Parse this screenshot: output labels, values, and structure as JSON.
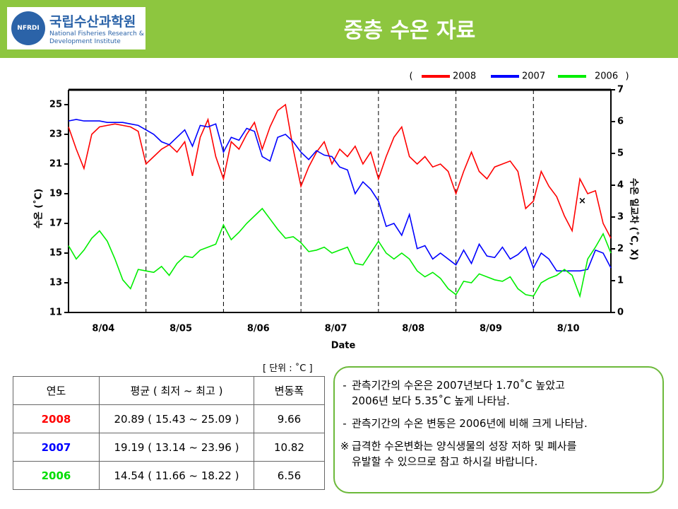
{
  "header": {
    "title": "중층 수온 자료",
    "logo": {
      "emblem": "NFRDI",
      "name": "국립수산과학원",
      "english": [
        "National Fisheries Research &",
        "Development Institute"
      ]
    }
  },
  "chart_data": {
    "type": "line",
    "x_label": "Date",
    "y_label": "수온 (˚C)",
    "y2_label": "수온 일교차 (˚C, X)",
    "legend": {
      "open": "(",
      "close": ")"
    },
    "categories": [
      "8/04",
      "8/05",
      "8/06",
      "8/07",
      "8/08",
      "8/09",
      "8/10"
    ],
    "xlim": [
      0,
      7
    ],
    "x": [
      0,
      0.1,
      0.2,
      0.3,
      0.4,
      0.5,
      0.6,
      0.7,
      0.8,
      0.9,
      1,
      1.1,
      1.2,
      1.3,
      1.4,
      1.5,
      1.6,
      1.7,
      1.8,
      1.9,
      2,
      2.1,
      2.2,
      2.3,
      2.4,
      2.5,
      2.6,
      2.7,
      2.8,
      2.9,
      3,
      3.1,
      3.2,
      3.3,
      3.4,
      3.5,
      3.6,
      3.7,
      3.8,
      3.9,
      4,
      4.1,
      4.2,
      4.3,
      4.4,
      4.5,
      4.6,
      4.7,
      4.8,
      4.9,
      5,
      5.1,
      5.2,
      5.3,
      5.4,
      5.5,
      5.6,
      5.7,
      5.8,
      5.9,
      6,
      6.1,
      6.2,
      6.3,
      6.4,
      6.5,
      6.6,
      6.7,
      6.8,
      6.9,
      7
    ],
    "ylim": [
      11,
      26
    ],
    "yticks": [
      11,
      13,
      15,
      17,
      19,
      21,
      23,
      25
    ],
    "y2lim": [
      0,
      7
    ],
    "y2ticks": [
      0,
      1,
      2,
      3,
      4,
      5,
      6,
      7
    ],
    "series": [
      {
        "name": "2008",
        "color": "#ff0000",
        "values": [
          23.5,
          22.0,
          20.7,
          23.0,
          23.5,
          23.6,
          23.7,
          23.6,
          23.5,
          23.2,
          21.0,
          21.5,
          22.0,
          22.3,
          21.8,
          22.5,
          20.2,
          22.8,
          24.0,
          21.5,
          20.0,
          22.5,
          22.0,
          23.0,
          23.8,
          22.0,
          23.5,
          24.6,
          25.0,
          22.0,
          19.5,
          20.8,
          21.8,
          22.5,
          21.0,
          22.0,
          21.5,
          22.2,
          21.0,
          21.8,
          20.0,
          21.5,
          22.8,
          23.5,
          21.5,
          21.0,
          21.5,
          20.8,
          21.0,
          20.5,
          19.0,
          20.5,
          21.8,
          20.5,
          20.0,
          20.8,
          21.0,
          21.2,
          20.5,
          18.0,
          18.5,
          20.5,
          19.5,
          18.8,
          17.5,
          16.5,
          20.0,
          19.0,
          19.2,
          17.0,
          16.0
        ]
      },
      {
        "name": "2007",
        "color": "#0000ff",
        "values": [
          23.9,
          24.0,
          23.9,
          23.9,
          23.9,
          23.8,
          23.8,
          23.8,
          23.7,
          23.6,
          23.3,
          23.0,
          22.5,
          22.3,
          22.8,
          23.3,
          22.2,
          23.6,
          23.5,
          23.7,
          21.8,
          22.8,
          22.6,
          23.4,
          23.2,
          21.5,
          21.2,
          22.8,
          23.0,
          22.5,
          21.8,
          21.3,
          21.9,
          21.6,
          21.5,
          20.8,
          20.6,
          19.0,
          19.8,
          19.3,
          18.5,
          16.8,
          17.0,
          16.2,
          17.6,
          15.3,
          15.5,
          14.6,
          15.0,
          14.6,
          14.2,
          15.2,
          14.3,
          15.6,
          14.8,
          14.7,
          15.4,
          14.6,
          14.9,
          15.4,
          14.0,
          15.0,
          14.6,
          13.8,
          13.8,
          13.8,
          13.8,
          13.9,
          15.2,
          15.0,
          14.0
        ]
      },
      {
        "name": "2006",
        "color": "#00ee00",
        "values": [
          15.5,
          14.6,
          15.2,
          16.0,
          16.5,
          15.8,
          14.6,
          13.2,
          12.6,
          13.9,
          13.8,
          13.7,
          14.1,
          13.5,
          14.3,
          14.8,
          14.7,
          15.2,
          15.4,
          15.6,
          16.9,
          15.9,
          16.4,
          17.0,
          17.5,
          18.0,
          17.3,
          16.6,
          16.0,
          16.1,
          15.7,
          15.1,
          15.2,
          15.4,
          15.0,
          15.2,
          15.4,
          14.3,
          14.2,
          15.0,
          15.8,
          15.0,
          14.6,
          15.0,
          14.6,
          13.8,
          13.4,
          13.7,
          13.3,
          12.6,
          12.2,
          13.1,
          13.0,
          13.6,
          13.4,
          13.2,
          13.1,
          13.4,
          12.6,
          12.2,
          12.1,
          13.0,
          13.3,
          13.5,
          13.9,
          13.5,
          12.1,
          14.6,
          15.4,
          16.3,
          15.0
        ]
      }
    ],
    "y2_points": {
      "x": [
        6.63
      ],
      "values": [
        3.5
      ],
      "marker": "×"
    }
  },
  "table": {
    "unit": "[ 단위 : ˚C ]",
    "header": [
      "연도",
      "평균 ( 최저 ~ 최고 )",
      "변동폭"
    ],
    "rows": [
      {
        "color": "#ff0000",
        "cells": [
          "2008",
          "20.89 ( 15.43 ~ 25.09 )",
          "9.66"
        ]
      },
      {
        "color": "#0000ff",
        "cells": [
          "2007",
          "19.19 ( 13.14 ~ 23.96 )",
          "10.82"
        ]
      },
      {
        "color": "#00dd00",
        "cells": [
          "2006",
          "14.54 ( 11.66 ~ 18.22 )",
          "6.56"
        ]
      }
    ]
  },
  "notes": [
    {
      "bullet": "-",
      "lines": [
        "관측기간의 수온은 2007년보다 1.70˚C 높았고",
        "2006년 보다 5.35˚C 높게 나타남."
      ]
    },
    {
      "bullet": "-",
      "lines": [
        "관측기간의 수온 변동은 2006년에 비해 크게 나타남."
      ]
    },
    {
      "bullet": "※",
      "lines": [
        "급격한 수온변화는 양식생물의 성장 저하 및 폐사를",
        "유발할 수 있으므로 참고 하시길 바랍니다."
      ]
    }
  ]
}
